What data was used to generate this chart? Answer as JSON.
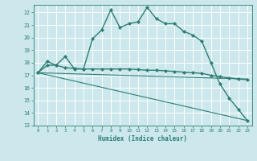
{
  "xlabel": "Humidex (Indice chaleur)",
  "bg_color": "#cce8ec",
  "grid_color": "#ffffff",
  "line_color": "#2d7d74",
  "xlim": [
    -0.5,
    23.5
  ],
  "ylim": [
    13,
    22.6
  ],
  "yticks": [
    13,
    14,
    15,
    16,
    17,
    18,
    19,
    20,
    21,
    22
  ],
  "xticks": [
    0,
    1,
    2,
    3,
    4,
    5,
    6,
    7,
    8,
    9,
    10,
    11,
    12,
    13,
    14,
    15,
    16,
    17,
    18,
    19,
    20,
    21,
    22,
    23
  ],
  "series": [
    {
      "x": [
        0,
        1,
        2,
        3,
        4,
        5,
        6,
        7,
        8,
        9,
        10,
        11,
        12,
        13,
        14,
        15,
        16,
        17,
        18,
        19,
        20,
        21,
        22,
        23
      ],
      "y": [
        17.2,
        18.1,
        17.8,
        18.5,
        17.5,
        17.5,
        19.9,
        20.6,
        22.2,
        20.8,
        21.1,
        21.25,
        22.4,
        21.5,
        21.1,
        21.1,
        20.5,
        20.2,
        19.7,
        18.0,
        16.3,
        15.2,
        14.3,
        13.4
      ],
      "marker": "D",
      "markersize": 2.0,
      "linewidth": 1.0,
      "has_marker": true
    },
    {
      "x": [
        0,
        1,
        2,
        3,
        4,
        5,
        6,
        7,
        8,
        9,
        10,
        11,
        12,
        13,
        14,
        15,
        16,
        17,
        18,
        19,
        20,
        21,
        22,
        23
      ],
      "y": [
        17.2,
        17.8,
        17.8,
        17.6,
        17.55,
        17.5,
        17.5,
        17.5,
        17.5,
        17.5,
        17.5,
        17.45,
        17.4,
        17.4,
        17.35,
        17.3,
        17.25,
        17.2,
        17.15,
        17.0,
        16.9,
        16.8,
        16.7,
        16.65
      ],
      "marker": "D",
      "markersize": 2.0,
      "linewidth": 1.0,
      "has_marker": true
    },
    {
      "x": [
        0,
        23
      ],
      "y": [
        17.2,
        13.4
      ],
      "marker": null,
      "markersize": 0,
      "linewidth": 0.8,
      "has_marker": false
    },
    {
      "x": [
        0,
        23
      ],
      "y": [
        17.2,
        16.7
      ],
      "marker": null,
      "markersize": 0,
      "linewidth": 0.8,
      "has_marker": false
    }
  ]
}
